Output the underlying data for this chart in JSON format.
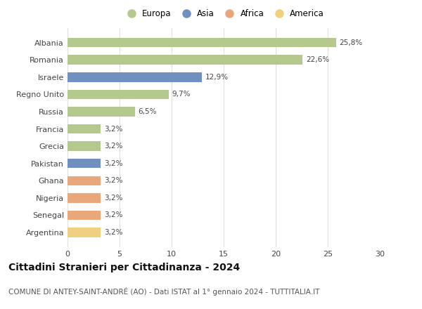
{
  "categories": [
    "Albania",
    "Romania",
    "Israele",
    "Regno Unito",
    "Russia",
    "Francia",
    "Grecia",
    "Pakistan",
    "Ghana",
    "Nigeria",
    "Senegal",
    "Argentina"
  ],
  "values": [
    25.8,
    22.6,
    12.9,
    9.7,
    6.5,
    3.2,
    3.2,
    3.2,
    3.2,
    3.2,
    3.2,
    3.2
  ],
  "labels": [
    "25,8%",
    "22,6%",
    "12,9%",
    "9,7%",
    "6,5%",
    "3,2%",
    "3,2%",
    "3,2%",
    "3,2%",
    "3,2%",
    "3,2%",
    "3,2%"
  ],
  "bar_colors": [
    "#b5c98e",
    "#b5c98e",
    "#7090bf",
    "#b5c98e",
    "#b5c98e",
    "#b5c98e",
    "#b5c98e",
    "#7090bf",
    "#e8a87c",
    "#e8a87c",
    "#e8a87c",
    "#f0d080"
  ],
  "legend_labels": [
    "Europa",
    "Asia",
    "Africa",
    "America"
  ],
  "legend_colors": [
    "#b5c98e",
    "#7090bf",
    "#e8a87c",
    "#f0d080"
  ],
  "xlim": [
    0,
    30
  ],
  "xticks": [
    0,
    5,
    10,
    15,
    20,
    25,
    30
  ],
  "title": "Cittadini Stranieri per Cittadinanza - 2024",
  "subtitle": "COMUNE DI ANTEY-SAINT-ANDRÉ (AO) - Dati ISTAT al 1° gennaio 2024 - TUTTITALIA.IT",
  "background_color": "#ffffff",
  "bar_height": 0.55,
  "label_fontsize": 7.5,
  "title_fontsize": 10,
  "subtitle_fontsize": 7.5,
  "tick_fontsize": 8,
  "ytick_fontsize": 8
}
